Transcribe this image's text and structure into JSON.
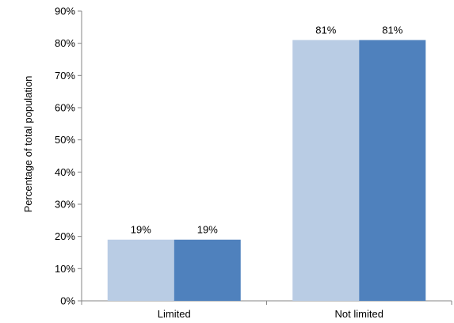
{
  "chart_data": {
    "type": "bar",
    "title": "",
    "xlabel": "",
    "ylabel": "Percentage of total population",
    "categories": [
      "Limited",
      "Not limited"
    ],
    "series": [
      {
        "values": [
          19,
          81
        ],
        "labels": [
          "19%",
          "81%"
        ],
        "color": "#b9cce4"
      },
      {
        "values": [
          19,
          81
        ],
        "labels": [
          "19%",
          "81%"
        ],
        "color": "#4f81bd"
      }
    ],
    "ylim": [
      0,
      90
    ],
    "yticks": [
      "0%",
      "10%",
      "20%",
      "30%",
      "40%",
      "50%",
      "60%",
      "70%",
      "80%",
      "90%"
    ],
    "grid": false,
    "legend": "none",
    "axis_color": "#868686"
  }
}
